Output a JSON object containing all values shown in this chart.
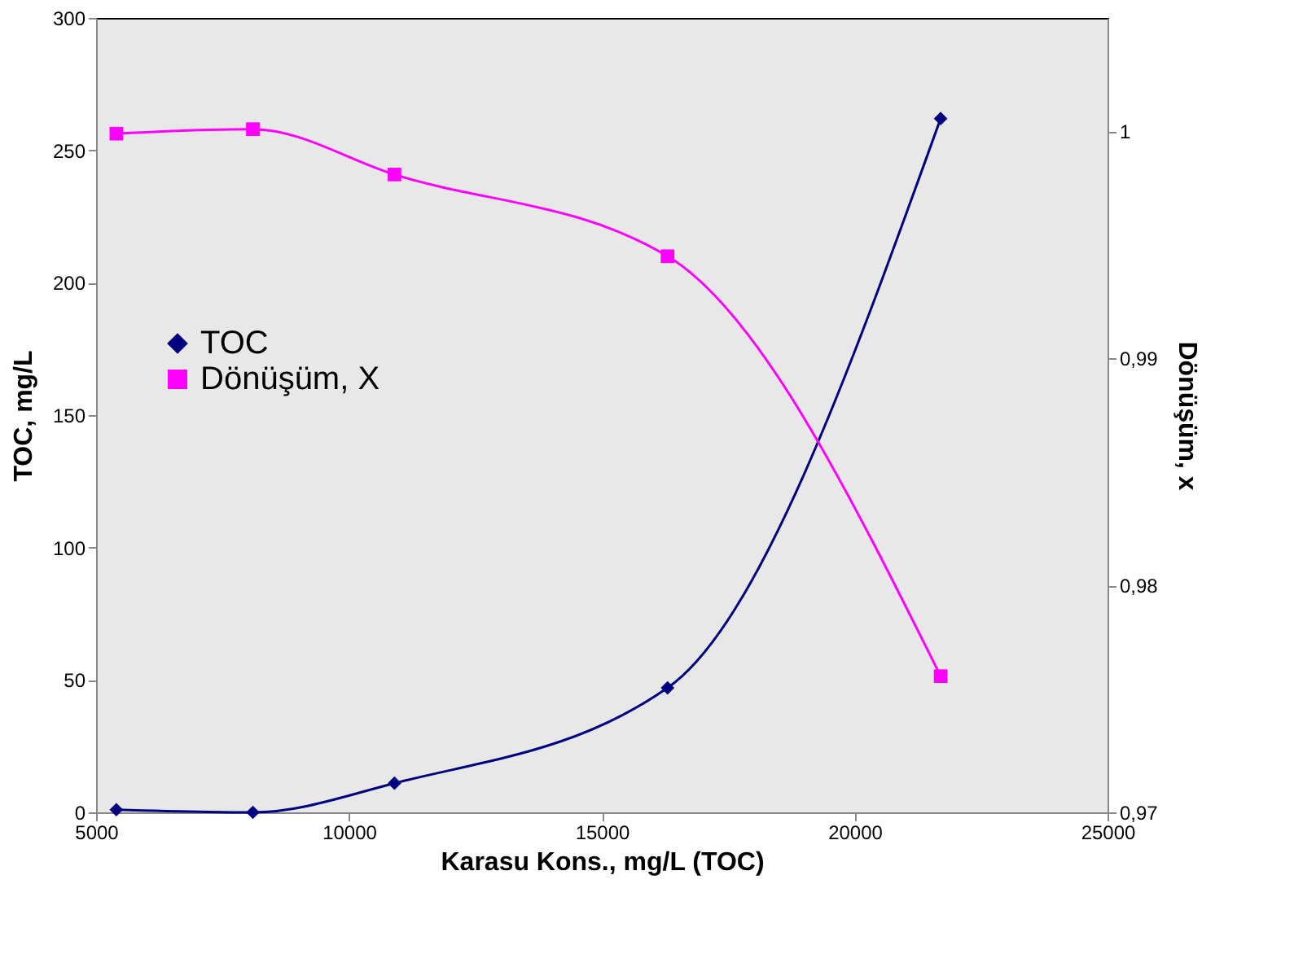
{
  "chart_data": {
    "type": "line",
    "xlabel": "Karasu Kons., mg/L (TOC)",
    "ylabel": "TOC, mg/L",
    "y2label": "Dönüşüm, x",
    "x": [
      5400,
      8100,
      10900,
      16300,
      21700
    ],
    "series": [
      {
        "name": "TOC",
        "color": "#000080",
        "marker": "diamond",
        "values": [
          1,
          0,
          11,
          47,
          262
        ]
      },
      {
        "name": "Dönüşüm, X",
        "color": "#ff00ff",
        "marker": "square",
        "axis": "y2",
        "values": [
          0.9999,
          1.0001,
          0.9981,
          0.9945,
          0.976
        ]
      }
    ],
    "xlim": [
      5000,
      25000
    ],
    "xticks": [
      5000,
      10000,
      15000,
      20000,
      25000
    ],
    "ylim": [
      0,
      300
    ],
    "yticks": [
      0,
      50,
      100,
      150,
      200,
      250,
      300
    ],
    "y2lim": [
      0.97,
      1.005
    ],
    "y2ticks": [
      {
        "value": 0.97,
        "label": "0,97"
      },
      {
        "value": 0.98,
        "label": "0,98"
      },
      {
        "value": 0.99,
        "label": "0,99"
      },
      {
        "value": 1,
        "label": "1"
      }
    ],
    "grid": false,
    "legend": "left",
    "line_style": "solid"
  }
}
